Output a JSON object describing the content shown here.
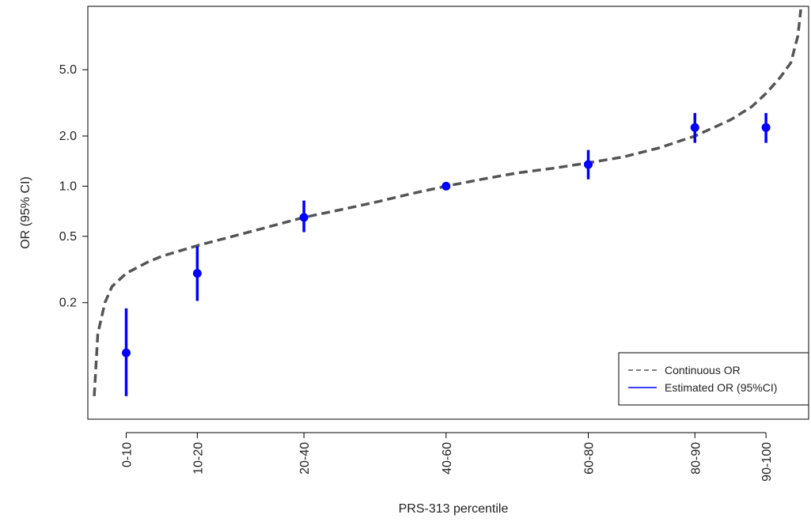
{
  "chart_data": {
    "type": "scatter",
    "title": "",
    "xlabel": "PRS-313 percentile",
    "ylabel": "OR (95% CI)",
    "y_scale": "log",
    "ylim": [
      0.04,
      12
    ],
    "xlim": [
      -0.4,
      101
    ],
    "y_ticks": [
      0.2,
      0.5,
      1.0,
      2.0,
      5.0
    ],
    "y_tick_labels": [
      "0.2",
      "0.5",
      "1.0",
      "2.0",
      "5.0"
    ],
    "categories": [
      "0-10",
      "10-20",
      "20-40",
      "40-60",
      "60-80",
      "80-90",
      "90-100"
    ],
    "category_x": [
      5,
      15,
      30,
      50,
      70,
      85,
      95
    ],
    "series": [
      {
        "name": "Estimated OR (95%CI)",
        "color": "#0000FF",
        "style": "point with vertical CI bar",
        "or": [
          0.1,
          0.3,
          0.65,
          1.0,
          1.35,
          2.25,
          2.25
        ],
        "ci_low": [
          0.055,
          0.205,
          0.53,
          0.99,
          1.1,
          1.82,
          1.82
        ],
        "ci_high": [
          0.185,
          0.435,
          0.82,
          1.01,
          1.65,
          2.75,
          2.75
        ]
      },
      {
        "name": "Continuous OR",
        "color": "#555555",
        "style": "dashed line",
        "x": [
          0.5,
          1,
          2,
          3,
          5,
          8,
          10,
          15,
          20,
          25,
          30,
          35,
          40,
          45,
          50,
          55,
          60,
          65,
          70,
          75,
          80,
          85,
          90,
          93,
          95,
          97,
          98.5,
          99.5,
          99.9
        ],
        "y": [
          0.055,
          0.13,
          0.2,
          0.25,
          0.3,
          0.35,
          0.38,
          0.44,
          0.5,
          0.57,
          0.65,
          0.72,
          0.8,
          0.9,
          1.0,
          1.1,
          1.2,
          1.28,
          1.38,
          1.5,
          1.7,
          2.0,
          2.5,
          3.0,
          3.6,
          4.5,
          5.5,
          8.0,
          11.5
        ]
      }
    ],
    "legend": {
      "placement": "bottom-right",
      "entries": [
        {
          "label": "Continuous OR",
          "color": "#555555",
          "style": "dashed"
        },
        {
          "label": "Estimated OR (95%CI)",
          "color": "#0000FF",
          "style": "solid"
        }
      ]
    },
    "grid": false
  }
}
